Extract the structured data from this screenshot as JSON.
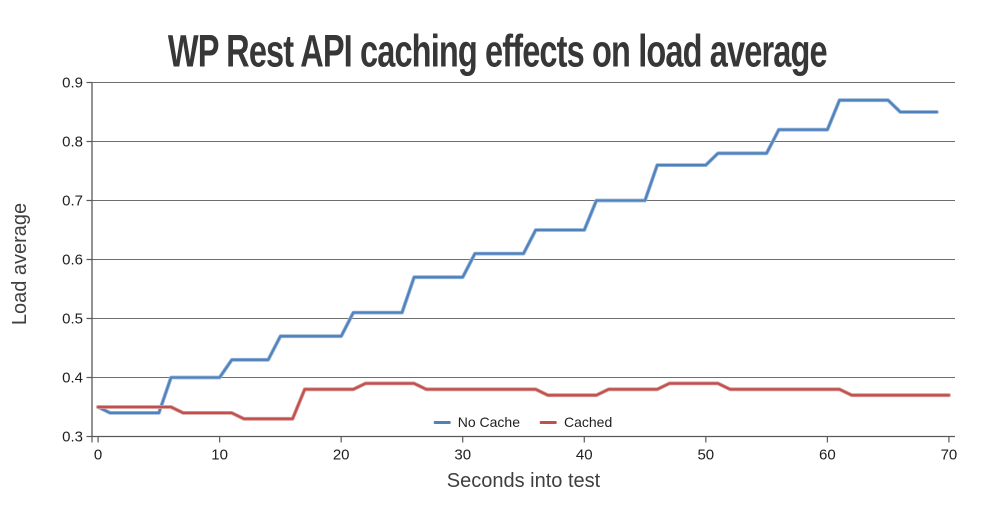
{
  "chart_data": {
    "type": "line",
    "title": "WP Rest API caching effects on load average",
    "xlabel": "Seconds into test",
    "ylabel": "Load average",
    "xlim": [
      0,
      70
    ],
    "ylim": [
      0.3,
      0.9
    ],
    "xticks": [
      0,
      10,
      20,
      30,
      40,
      50,
      60,
      70
    ],
    "yticks": [
      0.3,
      0.4,
      0.5,
      0.6,
      0.7,
      0.8,
      0.9
    ],
    "grid": "horizontal",
    "legend_position": "bottom-center-inside",
    "x_step_seconds": 1,
    "series": [
      {
        "name": "No Cache",
        "color": "#4F81BD",
        "halo_color": "#95B3D7",
        "x_start": 0,
        "values": [
          0.35,
          0.34,
          0.34,
          0.34,
          0.34,
          0.34,
          0.4,
          0.4,
          0.4,
          0.4,
          0.4,
          0.43,
          0.43,
          0.43,
          0.43,
          0.47,
          0.47,
          0.47,
          0.47,
          0.47,
          0.47,
          0.51,
          0.51,
          0.51,
          0.51,
          0.51,
          0.57,
          0.57,
          0.57,
          0.57,
          0.57,
          0.61,
          0.61,
          0.61,
          0.61,
          0.61,
          0.65,
          0.65,
          0.65,
          0.65,
          0.65,
          0.7,
          0.7,
          0.7,
          0.7,
          0.7,
          0.76,
          0.76,
          0.76,
          0.76,
          0.76,
          0.78,
          0.78,
          0.78,
          0.78,
          0.78,
          0.82,
          0.82,
          0.82,
          0.82,
          0.82,
          0.87,
          0.87,
          0.87,
          0.87,
          0.87,
          0.85,
          0.85,
          0.85,
          0.85
        ]
      },
      {
        "name": "Cached",
        "color": "#C0504D",
        "halo_color": "#D99694",
        "x_start": 0,
        "values": [
          0.35,
          0.35,
          0.35,
          0.35,
          0.35,
          0.35,
          0.35,
          0.34,
          0.34,
          0.34,
          0.34,
          0.34,
          0.33,
          0.33,
          0.33,
          0.33,
          0.33,
          0.38,
          0.38,
          0.38,
          0.38,
          0.38,
          0.39,
          0.39,
          0.39,
          0.39,
          0.39,
          0.38,
          0.38,
          0.38,
          0.38,
          0.38,
          0.38,
          0.38,
          0.38,
          0.38,
          0.38,
          0.37,
          0.37,
          0.37,
          0.37,
          0.37,
          0.38,
          0.38,
          0.38,
          0.38,
          0.38,
          0.39,
          0.39,
          0.39,
          0.39,
          0.39,
          0.38,
          0.38,
          0.38,
          0.38,
          0.38,
          0.38,
          0.38,
          0.38,
          0.38,
          0.38,
          0.37,
          0.37,
          0.37,
          0.37,
          0.37,
          0.37,
          0.37,
          0.37,
          0.37
        ]
      }
    ],
    "colors": {
      "gridline": "#6E6E6E",
      "axis": "#595959",
      "tick_label": "#1f1f1f",
      "axis_title": "#3f3f3f",
      "title": "#373737",
      "background": "#ffffff"
    }
  }
}
